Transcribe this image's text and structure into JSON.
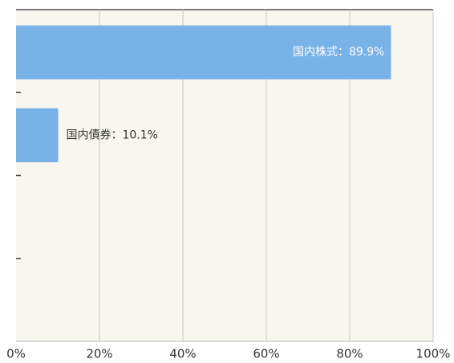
{
  "chart_data": {
    "type": "bar",
    "orientation": "horizontal",
    "categories": [
      null,
      null,
      null,
      null
    ],
    "values": [
      89.9,
      10.1,
      null,
      null
    ],
    "value_labels": [
      "国内株式：89.9%",
      "国内債券：10.1%",
      null,
      null
    ],
    "color": "#79b2e6",
    "xlim": [
      0,
      100
    ],
    "xticks": [
      {
        "value": 0,
        "label": "0%"
      },
      {
        "value": 20,
        "label": "20%"
      },
      {
        "value": 40,
        "label": "40%"
      },
      {
        "value": 60,
        "label": "60%"
      },
      {
        "value": 80,
        "label": "80%"
      },
      {
        "value": 100,
        "label": "100%"
      }
    ],
    "grid": true
  }
}
